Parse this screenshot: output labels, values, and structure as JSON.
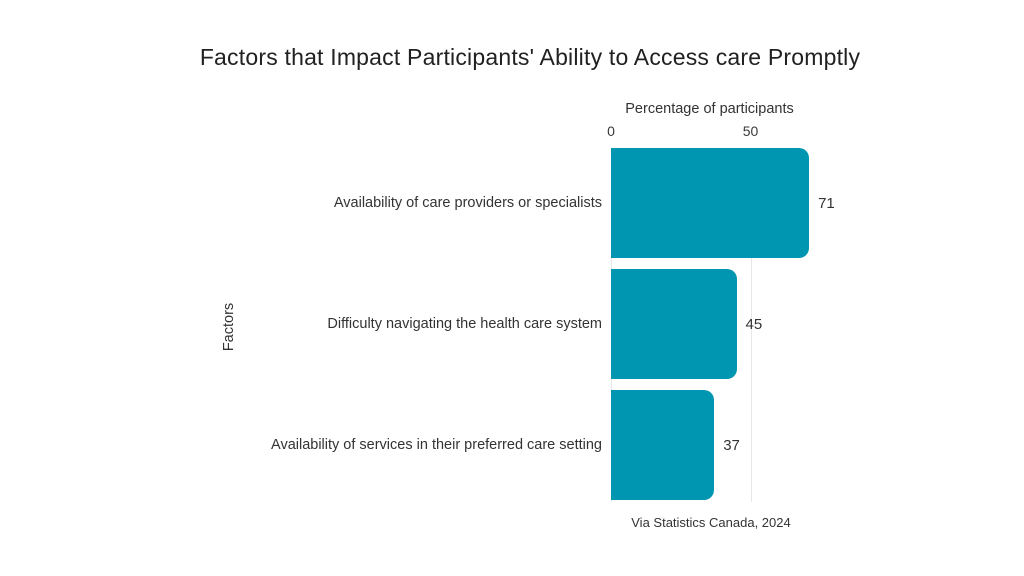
{
  "chart_data": {
    "type": "bar",
    "orientation": "horizontal",
    "title": "Factors that Impact Participants' Ability to Access care Promptly",
    "xlabel": "Percentage of participants",
    "ylabel": "Factors",
    "categories": [
      "Availability of care providers or specialists",
      "Difficulty navigating the health care system",
      "Availability of services in their preferred care setting"
    ],
    "values": [
      71,
      45,
      37
    ],
    "xticks": [
      0,
      50
    ],
    "xlim": [
      0,
      71
    ],
    "grid": "vertical gridlines at x ticks, light gray",
    "legend": "none",
    "bar_color": "#0096b2",
    "gridline_color": "#e7e7e7",
    "text_color": "#333333",
    "title_color": "#212121",
    "background_color": "#ffffff",
    "source": "Via Statistics Canada, 2024"
  }
}
